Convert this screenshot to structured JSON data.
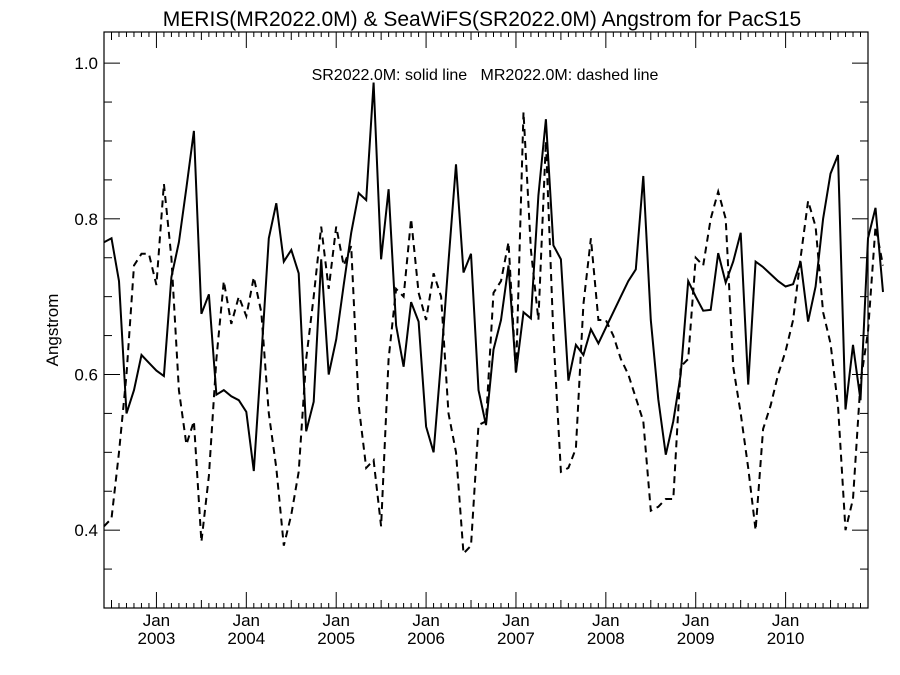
{
  "chart_data": {
    "type": "line",
    "title": "MERIS(MR2022.0M) & SeaWiFS(SR2022.0M)  Angstrom for PacS15",
    "annotation": "SR2022.0M: solid line   MR2022.0M: dashed line",
    "xlabel": "",
    "ylabel": "Angstrom",
    "xlim": [
      "2002-06",
      "2010-12"
    ],
    "ylim": [
      0.3,
      1.04
    ],
    "grid": false,
    "x_ticks": [
      {
        "month": "Jan",
        "year": "2003",
        "date": "2003-01"
      },
      {
        "month": "Jan",
        "year": "2004",
        "date": "2004-01"
      },
      {
        "month": "Jan",
        "year": "2005",
        "date": "2005-01"
      },
      {
        "month": "Jan",
        "year": "2006",
        "date": "2006-01"
      },
      {
        "month": "Jan",
        "year": "2007",
        "date": "2007-01"
      },
      {
        "month": "Jan",
        "year": "2008",
        "date": "2008-01"
      },
      {
        "month": "Jan",
        "year": "2009",
        "date": "2009-01"
      },
      {
        "month": "Jan",
        "year": "2010",
        "date": "2010-01"
      }
    ],
    "y_ticks": [
      "0.4",
      "0.6",
      "0.8",
      "1.0"
    ],
    "x_start": "2002-06",
    "series": [
      {
        "style": "solid",
        "color": "#000000",
        "values": [
          0.77,
          0.775,
          0.72,
          0.55,
          0.58,
          0.625,
          0.615,
          0.605,
          0.598,
          0.725,
          0.77,
          0.84,
          0.913,
          0.678,
          0.703,
          0.574,
          0.58,
          0.572,
          0.567,
          0.552,
          0.476,
          0.622,
          0.775,
          0.82,
          0.745,
          0.76,
          0.73,
          0.527,
          0.565,
          0.748,
          0.6,
          0.645,
          0.715,
          0.782,
          0.833,
          0.824,
          0.975,
          0.748,
          0.838,
          0.663,
          0.61,
          0.693,
          0.668,
          0.533,
          0.5,
          0.618,
          0.745,
          0.87,
          0.731,
          0.755,
          0.58,
          0.535,
          0.632,
          0.67,
          0.74,
          0.603,
          0.68,
          0.672,
          0.83,
          0.928,
          0.766,
          0.748,
          0.592,
          0.638,
          0.625,
          0.658,
          0.64,
          0.66,
          0.68,
          0.7,
          0.72,
          0.735,
          0.855,
          0.67,
          0.568,
          0.497,
          0.54,
          0.6,
          0.72,
          0.7,
          0.682,
          0.683,
          0.756,
          0.718,
          0.745,
          0.782,
          0.587,
          0.745,
          0.738,
          0.729,
          0.72,
          0.713,
          0.716,
          0.745,
          0.668,
          0.713,
          0.8,
          0.858,
          0.882,
          0.555,
          0.638,
          0.567,
          0.775,
          0.814,
          0.706
        ]
      },
      {
        "style": "dashed",
        "color": "#000000",
        "values": [
          0.405,
          0.415,
          0.5,
          0.6,
          0.74,
          0.755,
          0.755,
          0.715,
          0.845,
          0.75,
          0.58,
          0.51,
          0.54,
          0.385,
          0.47,
          0.62,
          0.72,
          0.665,
          0.7,
          0.675,
          0.725,
          0.68,
          0.55,
          0.48,
          0.38,
          0.42,
          0.475,
          0.62,
          0.7,
          0.79,
          0.71,
          0.79,
          0.74,
          0.765,
          0.56,
          0.48,
          0.49,
          0.405,
          0.62,
          0.71,
          0.7,
          0.8,
          0.705,
          0.67,
          0.73,
          0.7,
          0.55,
          0.5,
          0.37,
          0.38,
          0.535,
          0.54,
          0.705,
          0.72,
          0.77,
          0.6,
          0.937,
          0.76,
          0.67,
          0.9,
          0.65,
          0.475,
          0.48,
          0.505,
          0.69,
          0.775,
          0.67,
          0.67,
          0.65,
          0.62,
          0.6,
          0.57,
          0.54,
          0.425,
          0.43,
          0.44,
          0.44,
          0.61,
          0.62,
          0.75,
          0.74,
          0.8,
          0.835,
          0.8,
          0.61,
          0.55,
          0.48,
          0.4,
          0.53,
          0.56,
          0.6,
          0.63,
          0.67,
          0.75,
          0.823,
          0.79,
          0.68,
          0.64,
          0.56,
          0.4,
          0.44,
          0.59,
          0.655,
          0.79,
          0.74
        ]
      }
    ]
  }
}
